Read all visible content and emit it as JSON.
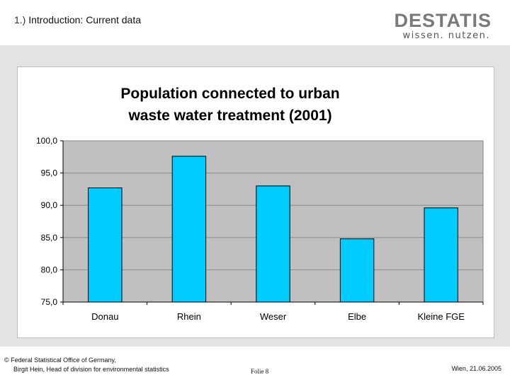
{
  "header": {
    "section_number": "1.)",
    "section_title": "Introduction",
    "colon": ":",
    "subtitle": "Current data"
  },
  "logo": {
    "main_text": "DESTATIS",
    "tagline": "wissen. nutzen."
  },
  "chart_data": {
    "type": "bar",
    "title_lines": [
      "Population connected to urban",
      "waste water treatment (2001)"
    ],
    "categories": [
      "Donau",
      "Rhein",
      "Weser",
      "Elbe",
      "Kleine FGE"
    ],
    "values": [
      92.7,
      97.6,
      93.0,
      84.8,
      89.6
    ],
    "ylim": [
      75,
      100
    ],
    "yticks": [
      "100,0",
      "95,0",
      "90,0",
      "85,0",
      "80,0",
      "75,0"
    ],
    "ytick_values": [
      100,
      95,
      90,
      85,
      80,
      75
    ],
    "grid": true,
    "xlabel": "",
    "ylabel": "",
    "bar_color": "#00ccff",
    "plot_background": "#c0c0c0"
  },
  "footer": {
    "copyright_line1": "© Federal Statistical Office of Germany,",
    "copyright_line2": "Birgit Hein, Head of division for environmental statistics",
    "slide_label": "Folie 8",
    "place_date": "Wien, 21.06.2005"
  }
}
